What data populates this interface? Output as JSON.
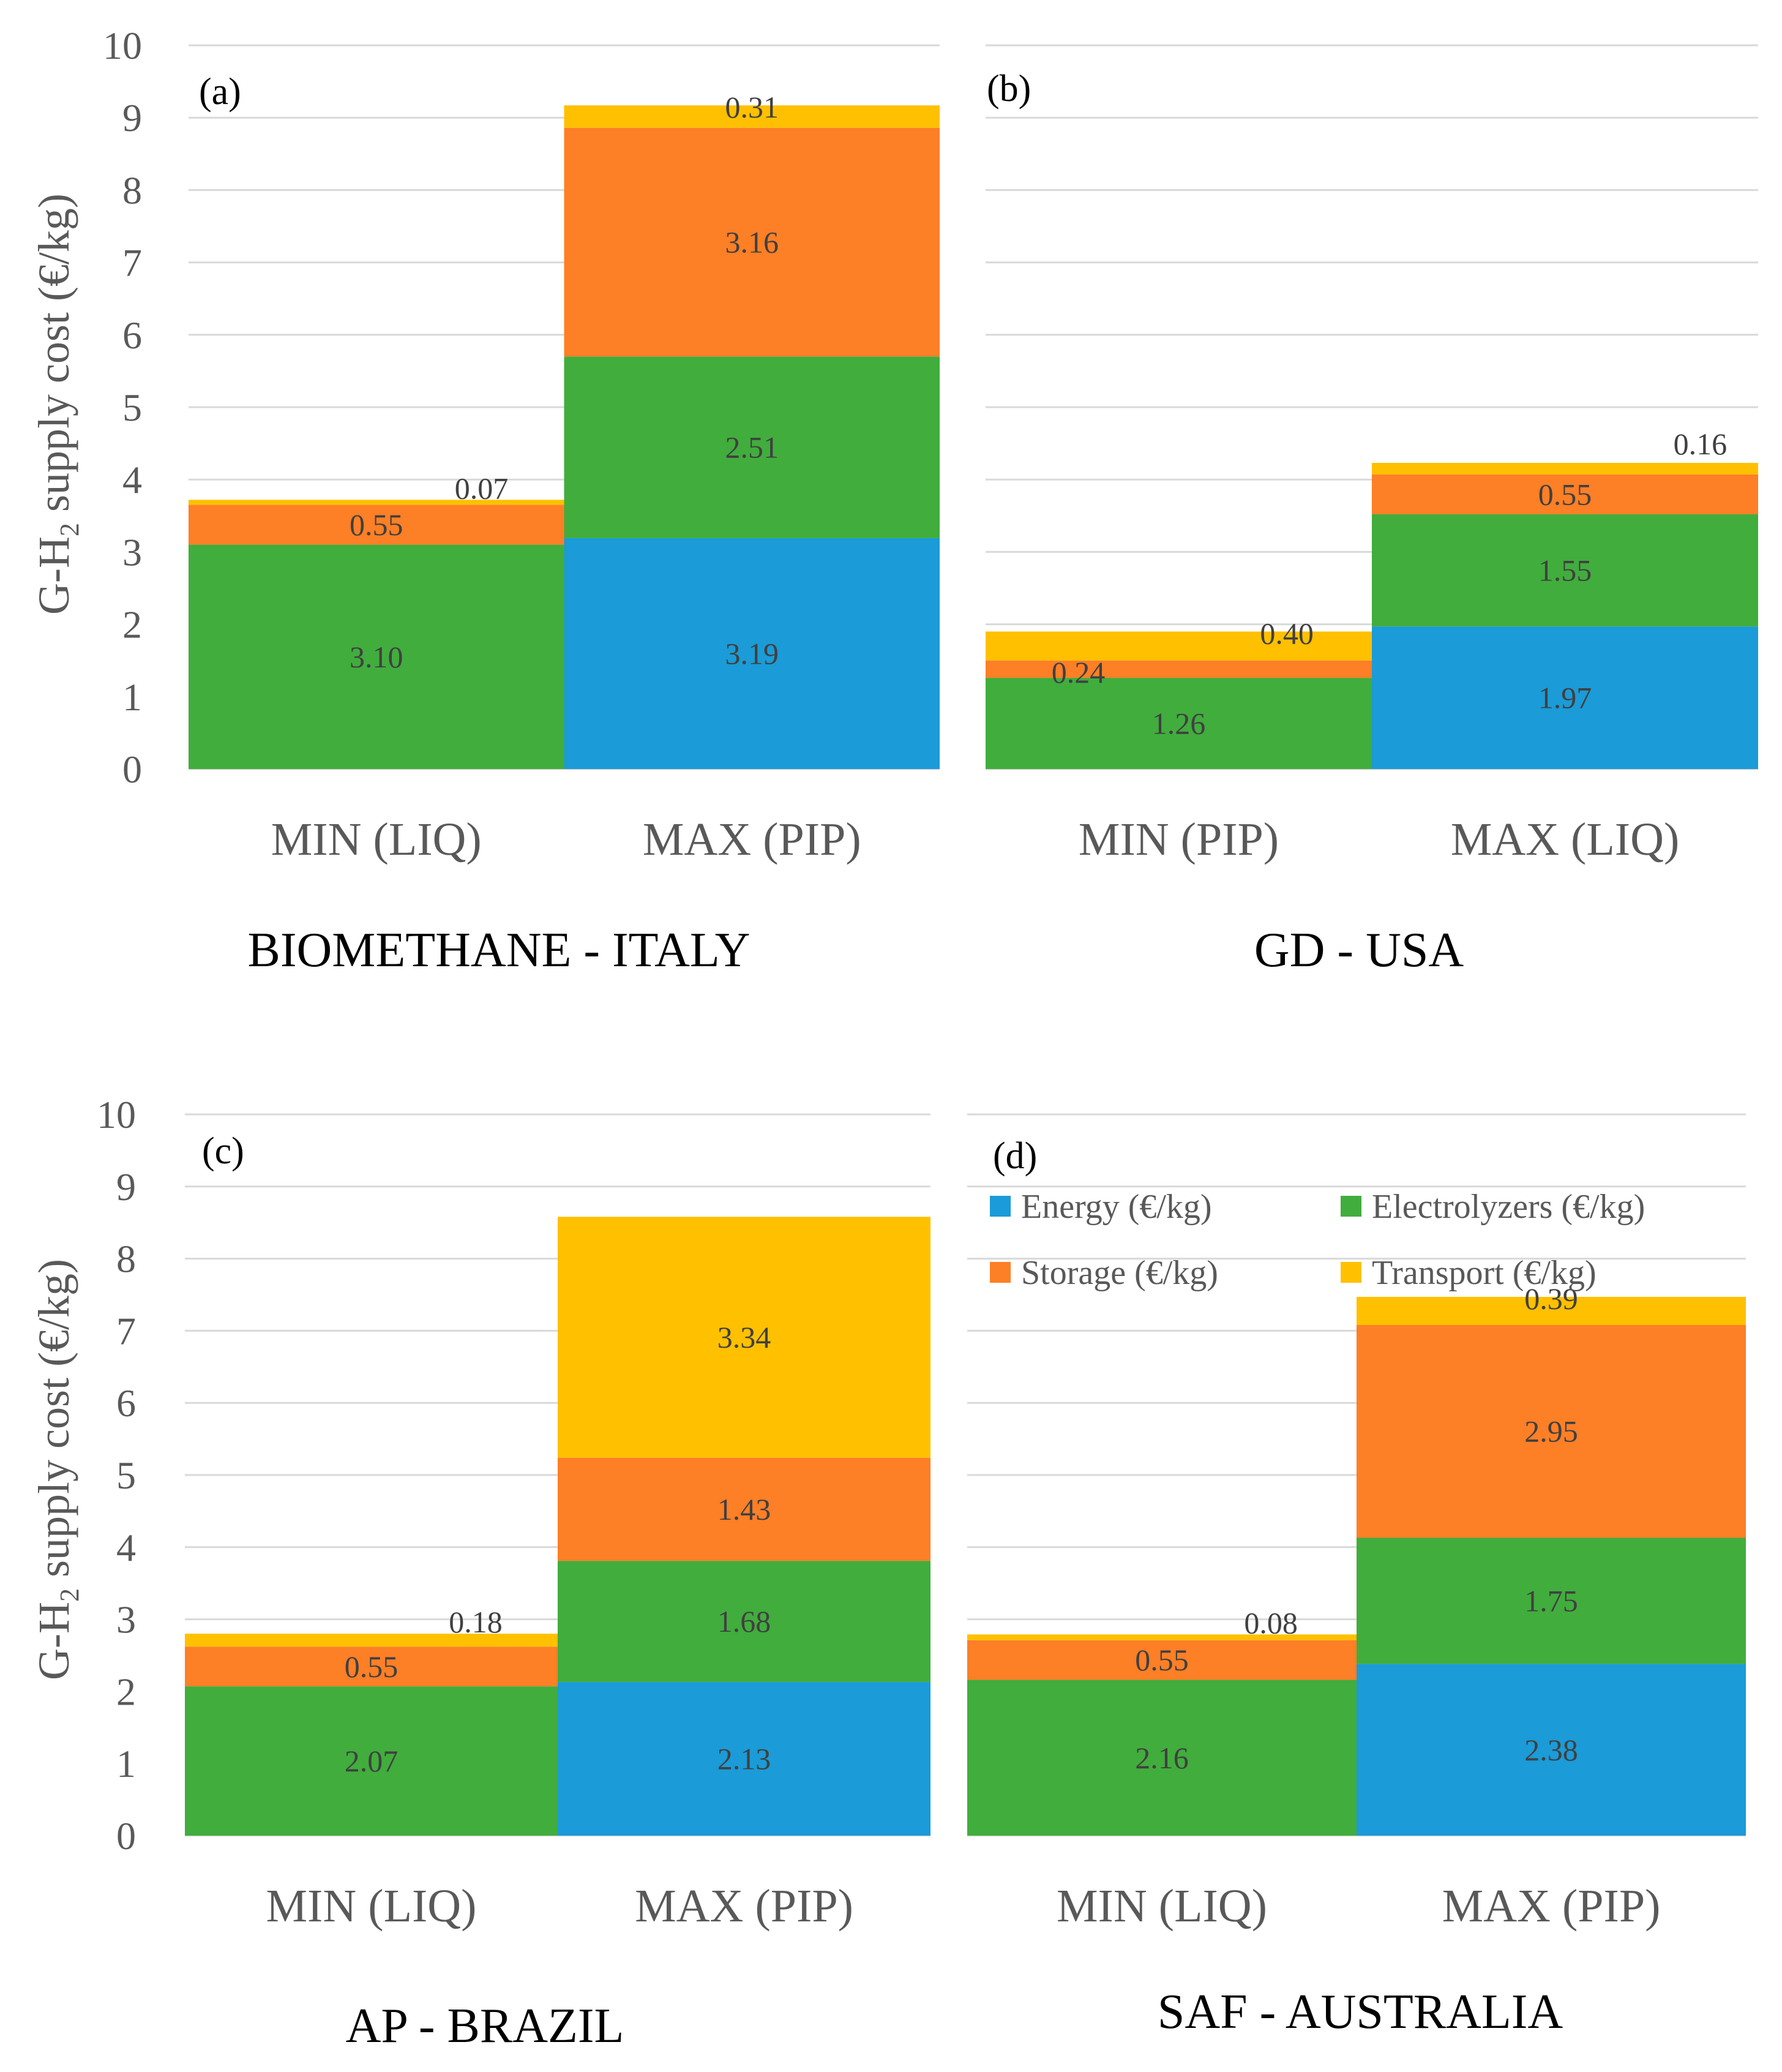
{
  "y_axis_title": {
    "prefix": "G-H",
    "subscript": "2",
    "suffix": " supply cost (€/kg)"
  },
  "colors": {
    "Energy": "#1b9bd7",
    "Electrolyzers": "#41ad3d",
    "Storage": "#fd7f26",
    "Transport": "#ffc000"
  },
  "legend": [
    {
      "key": "Energy",
      "label": "Energy (€/kg)"
    },
    {
      "key": "Electrolyzers",
      "label": "Electrolyzers (€/kg)"
    },
    {
      "key": "Storage",
      "label": "Storage (€/kg)"
    },
    {
      "key": "Transport",
      "label": "Transport (€/kg)"
    }
  ],
  "chart_data": [
    {
      "type": "bar",
      "stacked": true,
      "panel_label": "(a)",
      "title": "BIOMETHANE - ITALY",
      "categories": [
        "MIN (LIQ)",
        "MAX (PIP)"
      ],
      "ylim": [
        0,
        10
      ],
      "yticks": [
        "0",
        "1",
        "2",
        "3",
        "4",
        "5",
        "6",
        "7",
        "8",
        "9",
        "10"
      ],
      "grid": true,
      "series": [
        {
          "name": "Energy (€/kg)",
          "key": "Energy",
          "values": [
            0,
            3.19
          ],
          "labels": [
            "",
            "3.19"
          ]
        },
        {
          "name": "Electrolyzers (€/kg)",
          "key": "Electrolyzers",
          "values": [
            3.1,
            2.51
          ],
          "labels": [
            "3.10",
            "2.51"
          ]
        },
        {
          "name": "Storage (€/kg)",
          "key": "Storage",
          "values": [
            0.55,
            3.16
          ],
          "labels": [
            "0.55",
            "3.16"
          ]
        },
        {
          "name": "Transport (€/kg)",
          "key": "Transport",
          "values": [
            0.07,
            0.31
          ],
          "labels": [
            "0.07",
            "0.31"
          ]
        }
      ]
    },
    {
      "type": "bar",
      "stacked": true,
      "panel_label": "(b)",
      "title": "GD - USA",
      "categories": [
        "MIN (PIP)",
        "MAX (LIQ)"
      ],
      "ylim": [
        0,
        10
      ],
      "yticks": [],
      "grid": true,
      "series": [
        {
          "name": "Energy (€/kg)",
          "key": "Energy",
          "values": [
            0,
            1.97
          ],
          "labels": [
            "",
            "1.97"
          ]
        },
        {
          "name": "Electrolyzers (€/kg)",
          "key": "Electrolyzers",
          "values": [
            1.26,
            1.55
          ],
          "labels": [
            "1.26",
            "1.55"
          ]
        },
        {
          "name": "Storage (€/kg)",
          "key": "Storage",
          "values": [
            0.24,
            0.55
          ],
          "labels": [
            "0.24",
            "0.55"
          ]
        },
        {
          "name": "Transport (€/kg)",
          "key": "Transport",
          "values": [
            0.4,
            0.16
          ],
          "labels": [
            "0.40",
            "0.16"
          ]
        }
      ]
    },
    {
      "type": "bar",
      "stacked": true,
      "panel_label": "(c)",
      "title": "AP - BRAZIL",
      "categories": [
        "MIN (LIQ)",
        "MAX (PIP)"
      ],
      "ylim": [
        0,
        10
      ],
      "yticks": [
        "0",
        "1",
        "2",
        "3",
        "4",
        "5",
        "6",
        "7",
        "8",
        "9",
        "10"
      ],
      "grid": true,
      "series": [
        {
          "name": "Energy (€/kg)",
          "key": "Energy",
          "values": [
            0,
            2.13
          ],
          "labels": [
            "",
            "2.13"
          ]
        },
        {
          "name": "Electrolyzers (€/kg)",
          "key": "Electrolyzers",
          "values": [
            2.07,
            1.68
          ],
          "labels": [
            "2.07",
            "1.68"
          ]
        },
        {
          "name": "Storage (€/kg)",
          "key": "Storage",
          "values": [
            0.55,
            1.43
          ],
          "labels": [
            "0.55",
            "1.43"
          ]
        },
        {
          "name": "Transport (€/kg)",
          "key": "Transport",
          "values": [
            0.18,
            3.34
          ],
          "labels": [
            "0.18",
            "3.34"
          ]
        }
      ]
    },
    {
      "type": "bar",
      "stacked": true,
      "panel_label": "(d)",
      "title": "SAF - AUSTRALIA",
      "categories": [
        "MIN (LIQ)",
        "MAX (PIP)"
      ],
      "ylim": [
        0,
        10
      ],
      "yticks": [],
      "grid": true,
      "legend_position": "top",
      "series": [
        {
          "name": "Energy (€/kg)",
          "key": "Energy",
          "values": [
            0,
            2.38
          ],
          "labels": [
            "",
            "2.38"
          ]
        },
        {
          "name": "Electrolyzers (€/kg)",
          "key": "Electrolyzers",
          "values": [
            2.16,
            1.75
          ],
          "labels": [
            "2.16",
            "1.75"
          ]
        },
        {
          "name": "Storage (€/kg)",
          "key": "Storage",
          "values": [
            0.55,
            2.95
          ],
          "labels": [
            "0.55",
            "2.95"
          ]
        },
        {
          "name": "Transport (€/kg)",
          "key": "Transport",
          "values": [
            0.08,
            0.39
          ],
          "labels": [
            "0.08",
            "0.39"
          ]
        }
      ]
    }
  ]
}
